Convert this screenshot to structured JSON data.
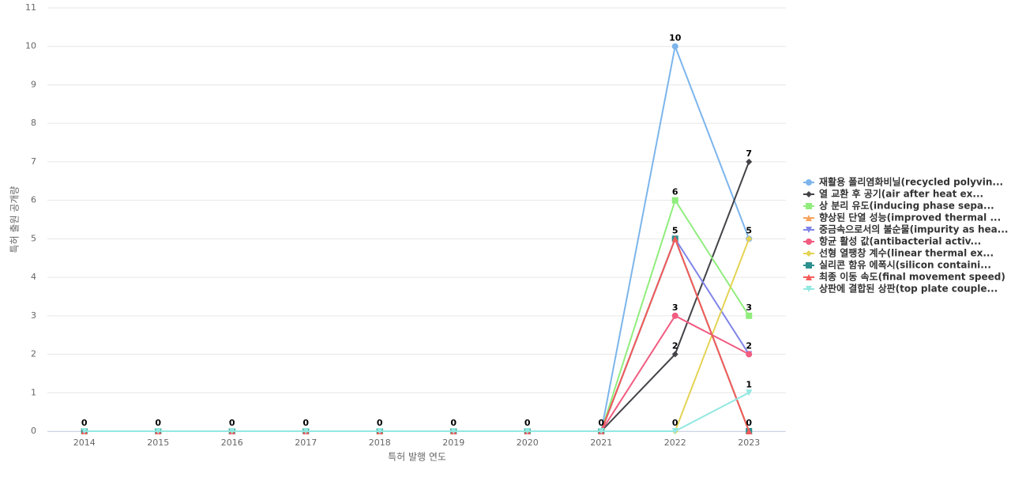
{
  "chart_data": {
    "type": "line",
    "x_label": "특허 발행 연도",
    "y_label": "특허 출원 공개량",
    "categories": [
      "2014",
      "2015",
      "2016",
      "2017",
      "2018",
      "2019",
      "2020",
      "2021",
      "2022",
      "2023"
    ],
    "ylim": [
      0,
      11
    ],
    "yticks": [
      0,
      1,
      2,
      3,
      4,
      5,
      6,
      7,
      8,
      9,
      10,
      11
    ],
    "grid": true,
    "legend": "right",
    "series": [
      {
        "name": "재활용 폴리염화비닐(recycled polyvin...",
        "color": "#7cb5ec",
        "symbol": "circle",
        "values": [
          0,
          0,
          0,
          0,
          0,
          0,
          0,
          0,
          10,
          5
        ]
      },
      {
        "name": "열 교환 후 공기(air after heat ex...",
        "color": "#434348",
        "symbol": "diamond",
        "values": [
          0,
          0,
          0,
          0,
          0,
          0,
          0,
          0,
          2,
          7
        ]
      },
      {
        "name": "상 분리 유도(inducing phase sepa...",
        "color": "#90ed7d",
        "symbol": "square",
        "values": [
          0,
          0,
          0,
          0,
          0,
          0,
          0,
          0,
          6,
          3
        ]
      },
      {
        "name": "향상된 단열 성능(improved thermal ...",
        "color": "#f7a35c",
        "symbol": "triangle",
        "values": [
          0,
          0,
          0,
          0,
          0,
          0,
          0,
          0,
          5,
          0
        ]
      },
      {
        "name": "중금속으로서의 불순물(impurity as hea...",
        "color": "#8085e9",
        "symbol": "triangle-down",
        "values": [
          0,
          0,
          0,
          0,
          0,
          0,
          0,
          0,
          5,
          2
        ]
      },
      {
        "name": "항균 활성 값(antibacterial activ...",
        "color": "#f15c80",
        "symbol": "circle",
        "values": [
          0,
          0,
          0,
          0,
          0,
          0,
          0,
          0,
          3,
          2
        ]
      },
      {
        "name": "선형 열팽창 계수(linear thermal ex...",
        "color": "#e4d354",
        "symbol": "diamond",
        "values": [
          0,
          0,
          0,
          0,
          0,
          0,
          0,
          0,
          0,
          5
        ]
      },
      {
        "name": "실리콘 함유 에폭시(silicon containi...",
        "color": "#2b908f",
        "symbol": "square",
        "values": [
          0,
          0,
          0,
          0,
          0,
          0,
          0,
          0,
          5,
          0
        ]
      },
      {
        "name": "최종 이동 속도(final movement speed)",
        "color": "#f45b5b",
        "symbol": "triangle",
        "values": [
          0,
          0,
          0,
          0,
          0,
          0,
          0,
          0,
          5,
          0
        ]
      },
      {
        "name": "상판에 결합된 상판(top plate couple...",
        "color": "#91e8e1",
        "symbol": "triangle-down",
        "values": [
          0,
          0,
          0,
          0,
          0,
          0,
          0,
          0,
          0,
          1
        ]
      }
    ]
  }
}
